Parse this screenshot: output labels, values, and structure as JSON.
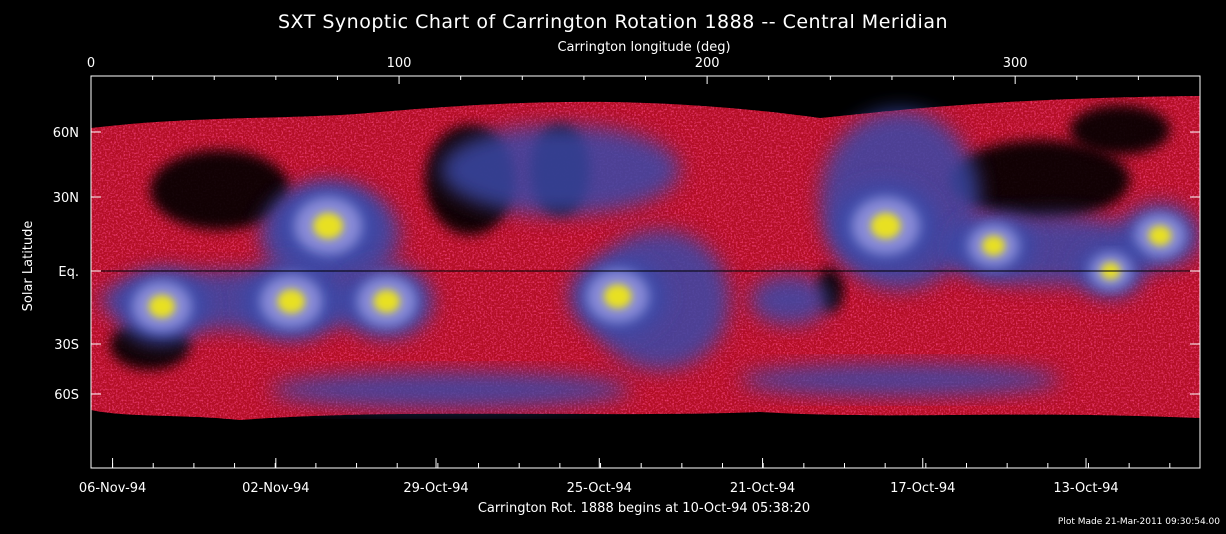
{
  "chart_data": {
    "type": "heatmap",
    "title": "SXT Synoptic Chart of Carrington Rotation 1888 -- Central Meridian",
    "top_axis": {
      "label": "Carrington longitude (deg)",
      "range": [
        0,
        360
      ],
      "ticks": [
        {
          "value": 0,
          "label": "0"
        },
        {
          "value": 100,
          "label": "100"
        },
        {
          "value": 200,
          "label": "200"
        },
        {
          "value": 300,
          "label": "300"
        }
      ]
    },
    "left_axis": {
      "label": "Solar Latitude",
      "ticks": [
        {
          "value": 60,
          "label": "60N"
        },
        {
          "value": 30,
          "label": "30N"
        },
        {
          "value": 0,
          "label": "Eq."
        },
        {
          "value": -30,
          "label": "30S"
        },
        {
          "value": -60,
          "label": "60S"
        }
      ]
    },
    "bottom_axis": {
      "label": "Carrington Rot. 1888 begins at 10-Oct-94 05:38:20",
      "ticks": [
        {
          "longitude": 7,
          "label": "06-Nov-94"
        },
        {
          "longitude": 60,
          "label": "02-Nov-94"
        },
        {
          "longitude": 112,
          "label": "29-Oct-94"
        },
        {
          "longitude": 165,
          "label": "25-Oct-94"
        },
        {
          "longitude": 218,
          "label": "21-Oct-94"
        },
        {
          "longitude": 270,
          "label": "17-Oct-94"
        },
        {
          "longitude": 323,
          "label": "13-Oct-94"
        }
      ]
    },
    "equator_line": true,
    "footer": "Plot Made 21-Mar-2011 09:30:54.00",
    "colors": {
      "background": "#000000",
      "low": "#d8102c",
      "mid": "#3a48a8",
      "high": "#8a8cd8",
      "peak": "#e8e020"
    },
    "active_regions": [
      {
        "lon": 77,
        "lat": 18,
        "intensity": 1.0
      },
      {
        "lon": 23,
        "lat": -14,
        "intensity": 0.85
      },
      {
        "lon": 65,
        "lat": -12,
        "intensity": 0.9
      },
      {
        "lon": 96,
        "lat": -12,
        "intensity": 0.85
      },
      {
        "lon": 171,
        "lat": -10,
        "intensity": 0.9
      },
      {
        "lon": 258,
        "lat": 18,
        "intensity": 1.0
      },
      {
        "lon": 293,
        "lat": 10,
        "intensity": 0.7
      },
      {
        "lon": 347,
        "lat": 14,
        "intensity": 0.7
      },
      {
        "lon": 331,
        "lat": 0,
        "intensity": 0.55
      }
    ]
  }
}
